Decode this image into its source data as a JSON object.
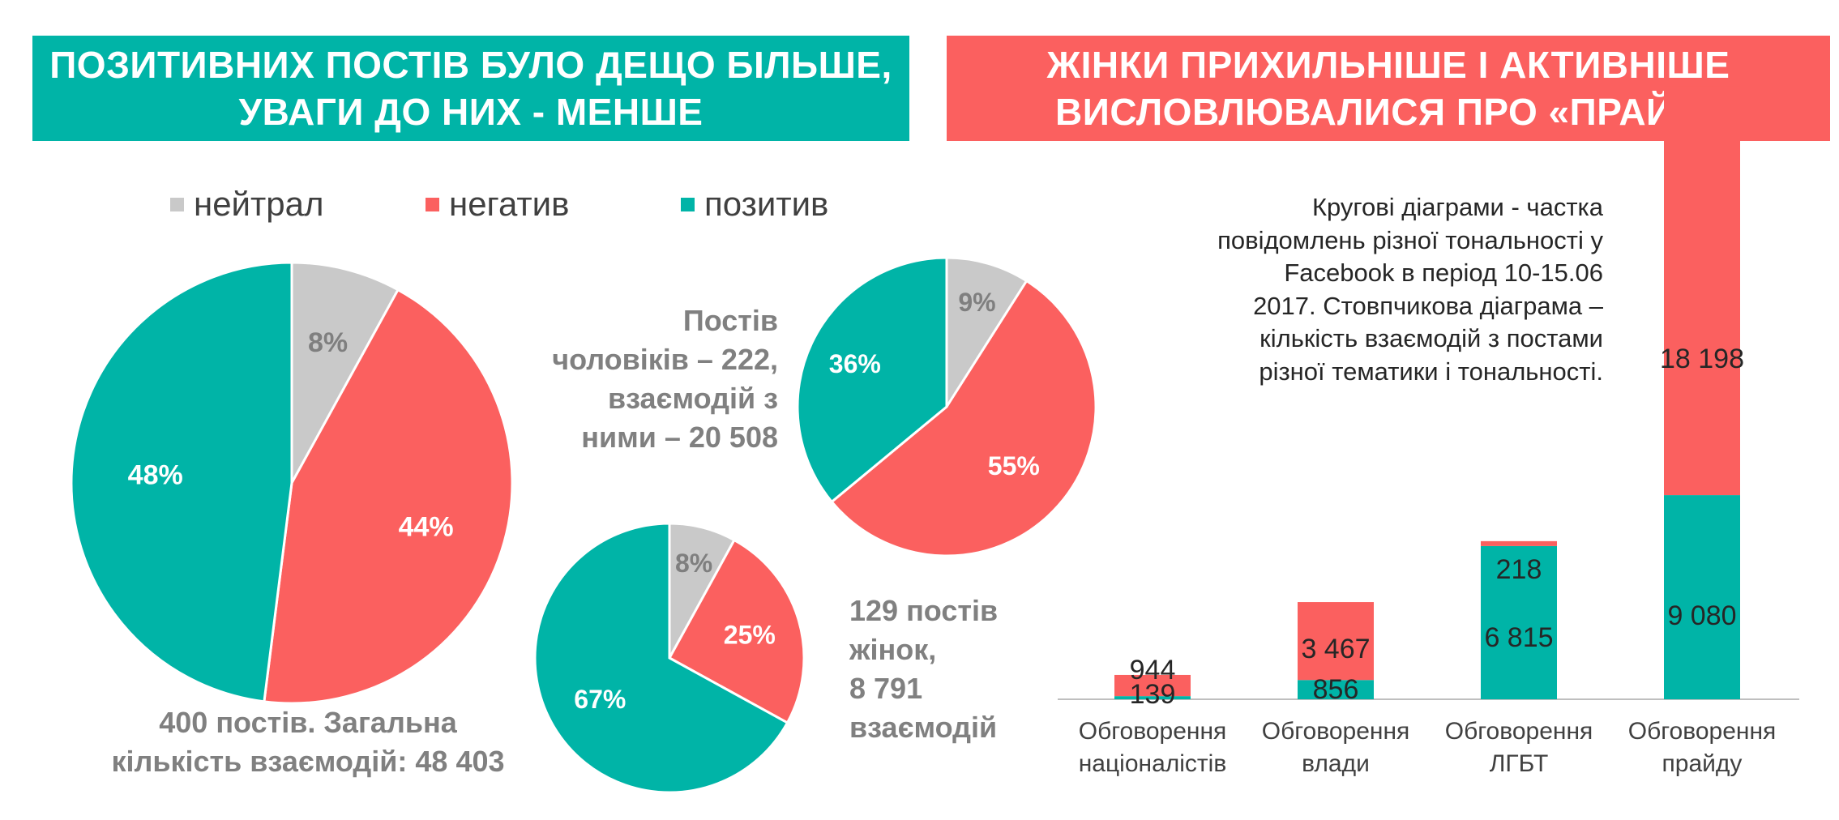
{
  "left_title": [
    "ПОЗИТИВНИХ ПОСТІВ БУЛО ДЕЩО БІЛЬШЕ,",
    "УВАГИ ДО НИХ - МЕНШЕ"
  ],
  "right_title": [
    "ЖІНКИ ПРИХИЛЬНІШЕ І АКТИВНІШЕ",
    "ВИСЛОВЛЮВАЛИСЯ ПРО «ПРАЙД»"
  ],
  "colors": {
    "neutral": "#c9c9c9",
    "negative": "#fb605f",
    "positive": "#00b4a7"
  },
  "legend": [
    {
      "key": "neutral",
      "label": "нейтрал"
    },
    {
      "key": "negative",
      "label": "негатив"
    },
    {
      "key": "positive",
      "label": "позитив"
    }
  ],
  "captions": {
    "all": [
      "400 постів. Загальна",
      "кількість взаємодій: 48 403"
    ],
    "men": [
      "Постів",
      "чоловіків – 222,",
      "взаємодій з",
      "ними –  20 508"
    ],
    "women": [
      "129 постів",
      "жінок,",
      "8 791",
      "взаємодій"
    ]
  },
  "note": [
    "Кругові діаграми - частка",
    "повідомлень різної тональності у",
    "Facebook  в період 10-15.06",
    "2017. Стовпчикова діаграма –",
    "кількість взаємодій з постами",
    "різної тематики і тональності."
  ],
  "chart_data": [
    {
      "type": "pie",
      "labels": [
        "нейтрал",
        "негатив",
        "позитив"
      ],
      "values": [
        8,
        44,
        48
      ],
      "value_labels": [
        "8%",
        "44%",
        "48%"
      ]
    },
    {
      "type": "pie",
      "labels": [
        "нейтрал",
        "негатив",
        "позитив"
      ],
      "values": [
        9,
        55,
        36
      ],
      "value_labels": [
        "9%",
        "55%",
        "36%"
      ]
    },
    {
      "type": "pie",
      "labels": [
        "нейтрал",
        "негатив",
        "позитив"
      ],
      "values": [
        8,
        25,
        67
      ],
      "value_labels": [
        "8%",
        "25%",
        "67%"
      ]
    },
    {
      "type": "bar",
      "stacked": true,
      "categories": [
        [
          "Обговорення",
          "націоналістів"
        ],
        [
          "Обговорення",
          "влади"
        ],
        [
          "Обговорення",
          "ЛГБТ"
        ],
        [
          "Обговорення",
          "прайду"
        ]
      ],
      "series": [
        {
          "key": "positive",
          "values": [
            139,
            856,
            6815,
            9080
          ],
          "value_labels": [
            "139",
            "856",
            "6 815",
            "9 080"
          ]
        },
        {
          "key": "negative",
          "values": [
            944,
            3467,
            218,
            18198
          ],
          "value_labels": [
            "944",
            "3 467",
            "218",
            "18 198"
          ]
        }
      ],
      "ylim": [
        0,
        27500
      ]
    }
  ]
}
